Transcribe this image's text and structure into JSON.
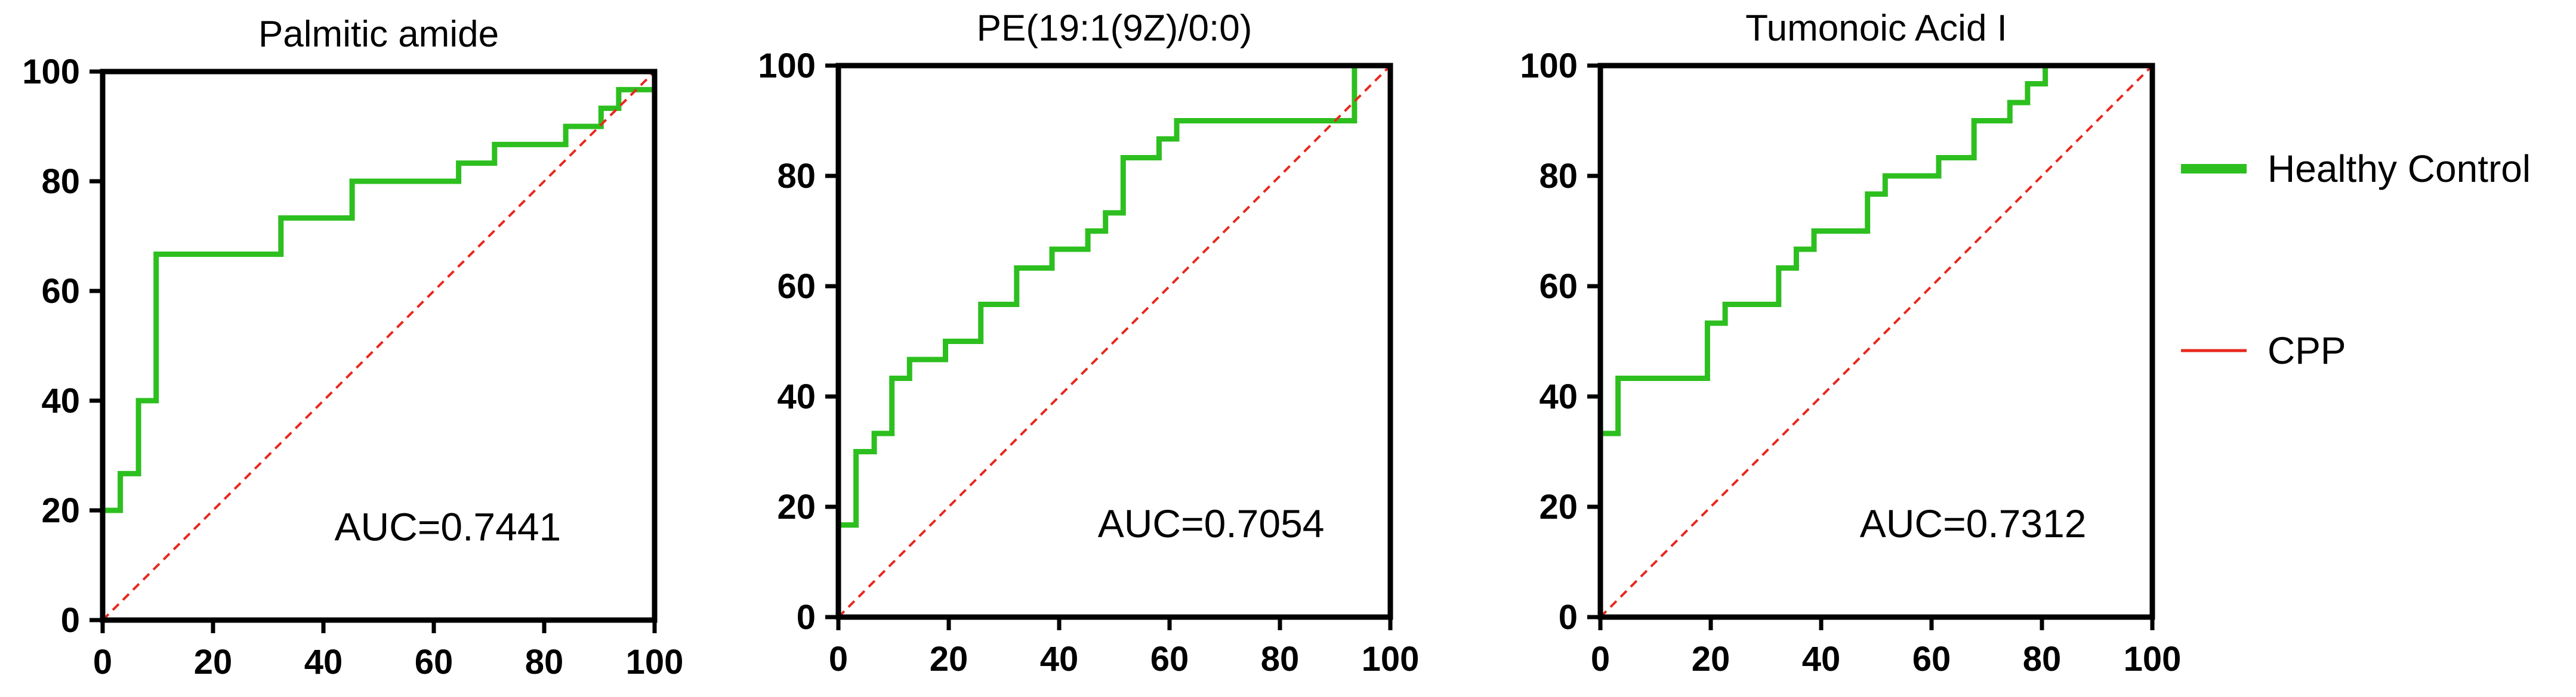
{
  "colors": {
    "roc": "#2dbf1f",
    "reference": "#e8281e",
    "axis": "#000000"
  },
  "legend": {
    "placement": "right",
    "items": [
      {
        "label": "Healthy Control",
        "color": "#2dbf1f",
        "style": "thick-line"
      },
      {
        "label": "CPP",
        "color": "#e8281e",
        "style": "thin-line"
      }
    ]
  },
  "chart_data": [
    {
      "type": "line",
      "title": "Palmitic amide",
      "xlabel": "",
      "ylabel": "",
      "xlim": [
        0,
        100
      ],
      "ylim": [
        0,
        100
      ],
      "xticks": [
        0,
        20,
        40,
        60,
        80,
        100
      ],
      "yticks": [
        0,
        20,
        40,
        60,
        80,
        100
      ],
      "annotation": "AUC=0.7441",
      "series": [
        {
          "color": "#2dbf1f",
          "x": [
            0,
            0,
            3.2,
            3.2,
            6.5,
            6.5,
            9.7,
            9.7,
            32.3,
            32.3,
            45.2,
            45.2,
            64.5,
            64.5,
            71,
            71,
            83.9,
            83.9,
            90.3,
            90.3,
            93.5,
            93.5,
            100,
            100
          ],
          "y": [
            0,
            20,
            20,
            26.7,
            26.7,
            40,
            40,
            66.7,
            66.7,
            73.3,
            73.3,
            80,
            80,
            83.3,
            83.3,
            86.7,
            86.7,
            90,
            90,
            93.3,
            93.3,
            96.7,
            96.7,
            100
          ]
        },
        {
          "color": "#e8281e",
          "dashed": true,
          "x": [
            0,
            100
          ],
          "y": [
            0,
            100
          ]
        }
      ]
    },
    {
      "type": "line",
      "title": "PE(19:1(9Z)/0:0)",
      "xlabel": "",
      "ylabel": "",
      "xlim": [
        0,
        100
      ],
      "ylim": [
        0,
        100
      ],
      "xticks": [
        0,
        20,
        40,
        60,
        80,
        100
      ],
      "yticks": [
        0,
        20,
        40,
        60,
        80,
        100
      ],
      "annotation": "AUC=0.7054",
      "series": [
        {
          "color": "#2dbf1f",
          "x": [
            0,
            0,
            3.2,
            3.2,
            6.5,
            6.5,
            9.7,
            9.7,
            12.9,
            12.9,
            19.4,
            19.4,
            25.8,
            25.8,
            32.3,
            32.3,
            38.7,
            38.7,
            45.2,
            45.2,
            48.4,
            48.4,
            51.6,
            51.6,
            58.1,
            58.1,
            61.3,
            61.3,
            93.5,
            93.5,
            100
          ],
          "y": [
            0,
            16.7,
            16.7,
            30,
            30,
            33.3,
            33.3,
            43.3,
            43.3,
            46.7,
            46.7,
            50,
            50,
            56.7,
            56.7,
            63.3,
            63.3,
            66.7,
            66.7,
            70,
            70,
            73.3,
            73.3,
            83.3,
            83.3,
            86.7,
            86.7,
            90,
            90,
            100,
            100
          ]
        },
        {
          "color": "#e8281e",
          "dashed": true,
          "x": [
            0,
            100
          ],
          "y": [
            0,
            100
          ]
        }
      ]
    },
    {
      "type": "line",
      "title": "Tumonoic Acid I",
      "xlabel": "",
      "ylabel": "",
      "xlim": [
        0,
        100
      ],
      "ylim": [
        0,
        100
      ],
      "xticks": [
        0,
        20,
        40,
        60,
        80,
        100
      ],
      "yticks": [
        0,
        20,
        40,
        60,
        80,
        100
      ],
      "annotation": "AUC=0.7312",
      "series": [
        {
          "color": "#2dbf1f",
          "x": [
            0,
            0,
            3.2,
            3.2,
            19.4,
            19.4,
            22.6,
            22.6,
            32.3,
            32.3,
            35.5,
            35.5,
            38.7,
            38.7,
            48.4,
            48.4,
            51.6,
            51.6,
            61.3,
            61.3,
            67.7,
            67.7,
            74.2,
            74.2,
            77.4,
            77.4,
            80.6,
            80.6,
            100
          ],
          "y": [
            0,
            33.3,
            33.3,
            43.3,
            43.3,
            53.3,
            53.3,
            56.7,
            56.7,
            63.3,
            63.3,
            66.7,
            66.7,
            70,
            70,
            76.7,
            76.7,
            80,
            80,
            83.3,
            83.3,
            90,
            90,
            93.3,
            93.3,
            96.7,
            96.7,
            100,
            100
          ]
        },
        {
          "color": "#e8281e",
          "dashed": true,
          "x": [
            0,
            100
          ],
          "y": [
            0,
            100
          ]
        }
      ]
    }
  ]
}
